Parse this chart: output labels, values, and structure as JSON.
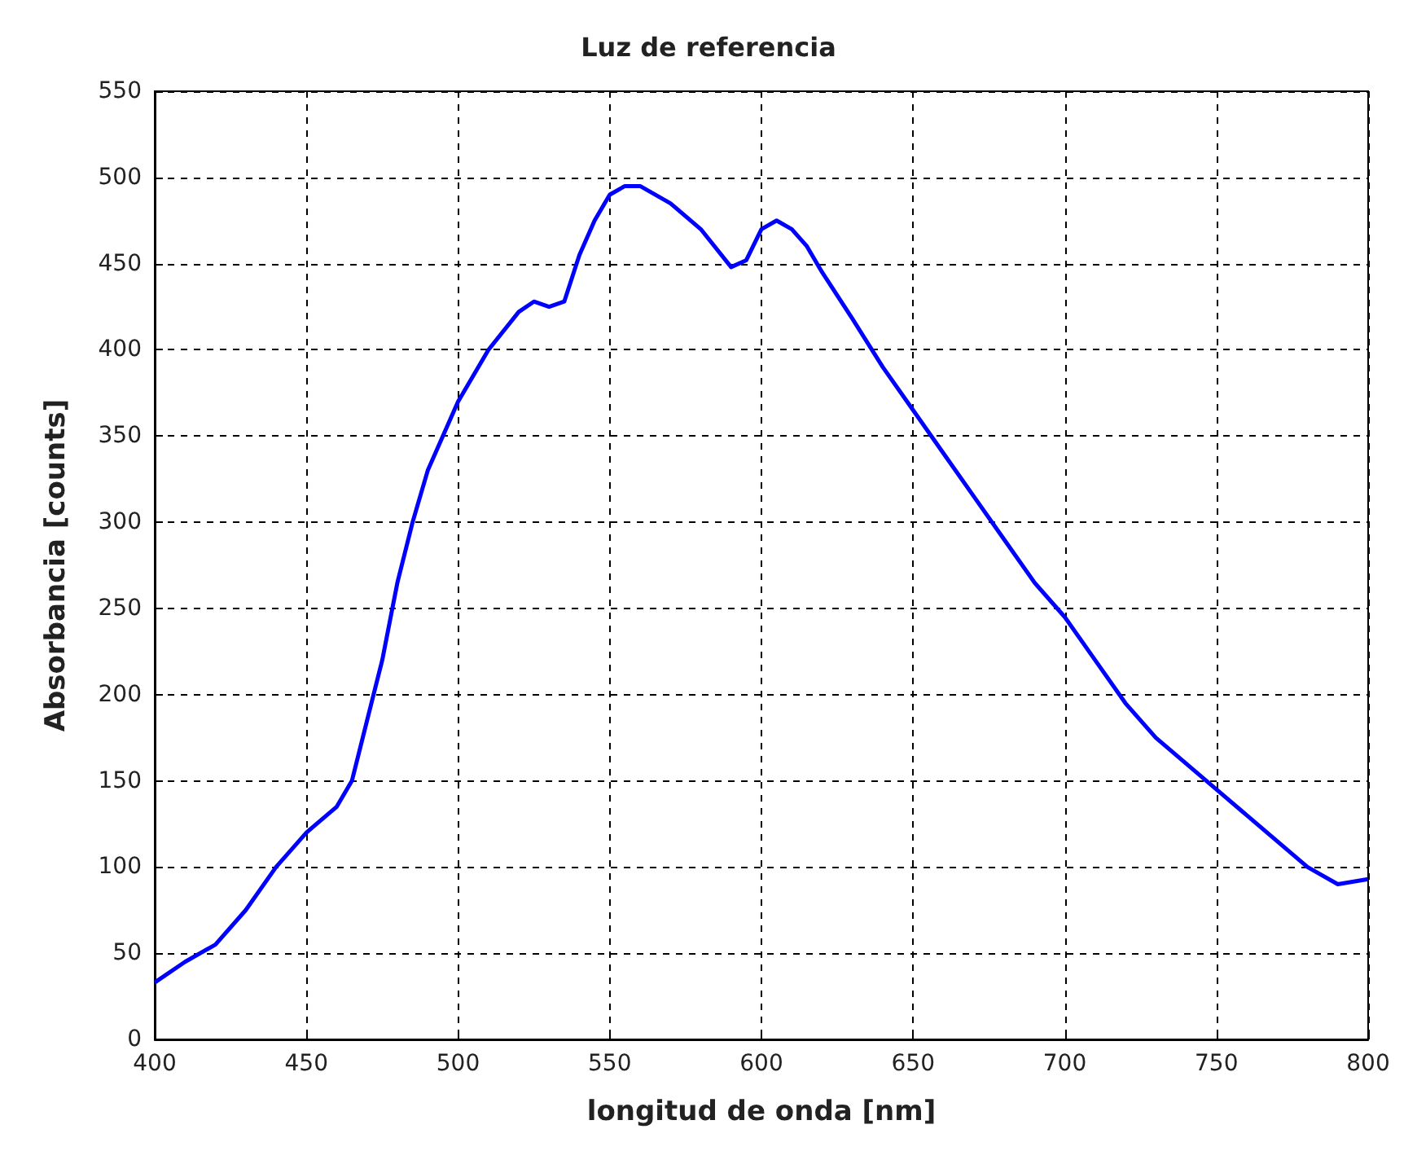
{
  "chart_data": {
    "type": "line",
    "title": "Luz de referencia",
    "xlabel": "longitud de onda [nm]",
    "ylabel": "Absorbancia [counts]",
    "x": [
      400,
      410,
      420,
      430,
      440,
      450,
      460,
      465,
      470,
      475,
      480,
      485,
      490,
      500,
      510,
      520,
      525,
      530,
      535,
      540,
      545,
      550,
      555,
      560,
      570,
      580,
      590,
      595,
      600,
      605,
      610,
      615,
      620,
      630,
      640,
      650,
      660,
      670,
      680,
      690,
      700,
      710,
      720,
      730,
      740,
      750,
      760,
      770,
      780,
      790,
      800
    ],
    "series": [
      {
        "color": "#0000ff",
        "values": [
          33,
          45,
          55,
          75,
          100,
          120,
          135,
          150,
          185,
          220,
          265,
          300,
          330,
          370,
          400,
          422,
          428,
          425,
          428,
          455,
          475,
          490,
          495,
          495,
          485,
          470,
          448,
          452,
          470,
          475,
          470,
          460,
          445,
          418,
          390,
          365,
          340,
          315,
          290,
          265,
          245,
          220,
          195,
          175,
          160,
          145,
          130,
          115,
          100,
          90,
          93
        ]
      }
    ],
    "xlim": [
      400,
      800
    ],
    "xticks": [
      400,
      450,
      500,
      550,
      600,
      650,
      700,
      750,
      800
    ],
    "ylim": [
      0,
      550
    ],
    "yticks": [
      0,
      50,
      100,
      150,
      200,
      250,
      300,
      350,
      400,
      450,
      500,
      550
    ],
    "grid": true,
    "marker": "none",
    "line_style": "solid"
  }
}
